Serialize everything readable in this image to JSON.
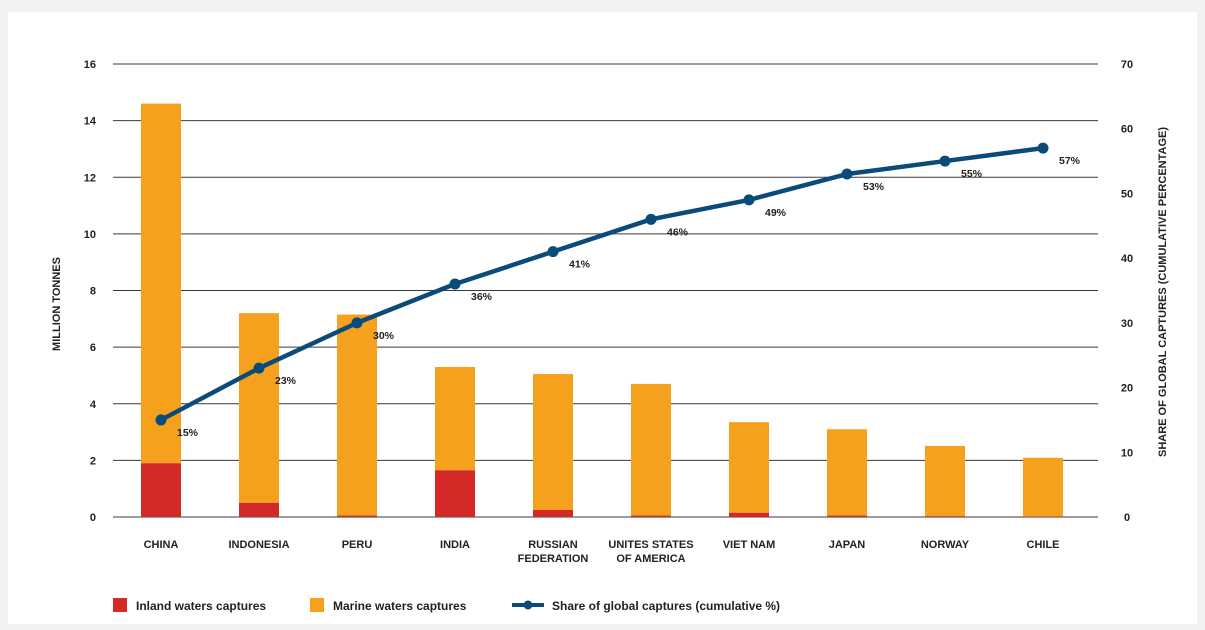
{
  "chart_data": {
    "type": "bar",
    "categories": [
      [
        "CHINA"
      ],
      [
        "INDONESIA"
      ],
      [
        "PERU"
      ],
      [
        "INDIA"
      ],
      [
        "RUSSIAN",
        "FEDERATION"
      ],
      [
        "UNITES STATES",
        "OF AMERICA"
      ],
      [
        "VIET NAM"
      ],
      [
        "JAPAN"
      ],
      [
        "NORWAY"
      ],
      [
        "CHILE"
      ]
    ],
    "series": [
      {
        "name": "Inland waters captures",
        "kind": "stacked-bar",
        "axis": "left",
        "color": "#d42a27",
        "values": [
          1.9,
          0.5,
          0.05,
          1.65,
          0.25,
          0.05,
          0.15,
          0.05,
          0.03,
          0.02
        ]
      },
      {
        "name": "Marine waters captures",
        "kind": "stacked-bar",
        "axis": "left",
        "color": "#f6a11d",
        "values": [
          12.7,
          6.7,
          7.1,
          3.65,
          4.8,
          4.65,
          3.2,
          3.05,
          2.48,
          2.07
        ]
      },
      {
        "name": "Share of global captures (cumulative %)",
        "kind": "line",
        "axis": "right",
        "color": "#0b4b79",
        "values": [
          15,
          23,
          30,
          36,
          41,
          46,
          49,
          53,
          55,
          57
        ],
        "labels": [
          "15%",
          "23%",
          "30%",
          "36%",
          "41%",
          "46%",
          "49%",
          "53%",
          "55%",
          "57%"
        ]
      }
    ],
    "ylabel": "MILLION TONNES",
    "y2label": "SHARE OF GLOBAL CAPTURES (CUMULATIVE PERCENTAGE)",
    "ylim": [
      0,
      16
    ],
    "yticks": [
      0,
      2,
      4,
      6,
      8,
      10,
      12,
      14,
      16
    ],
    "y2lim": [
      0,
      70
    ],
    "y2ticks": [
      0,
      10,
      20,
      30,
      40,
      50,
      60,
      70
    ],
    "grid": true,
    "legend_position": "bottom-left"
  }
}
